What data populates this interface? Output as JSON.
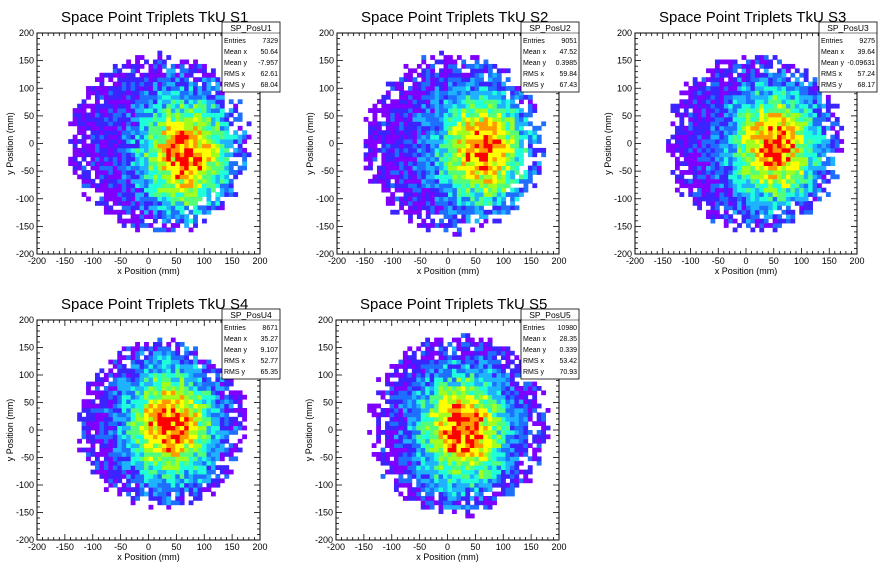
{
  "chart_data": [
    {
      "type": "heatmap",
      "title": "Space Point Triplets TkU S1",
      "xlabel": "x Position (mm)",
      "ylabel": "y Position (mm)",
      "xlim": [
        -200,
        200
      ],
      "ylim": [
        -200,
        200
      ],
      "xticks": [
        "-200",
        "-150",
        "-100",
        "-50",
        "0",
        "50",
        "100",
        "150",
        "200"
      ],
      "yticks": [
        "-200",
        "-150",
        "-100",
        "-50",
        "0",
        "50",
        "100",
        "150",
        "200"
      ],
      "disk_center": [
        20,
        0
      ],
      "disk_radius": 160,
      "hot_center": [
        70,
        -20
      ],
      "colors": [
        "#ffffff",
        "#7f00ff",
        "#3b24ff",
        "#1f6fff",
        "#1fb3ff",
        "#1fffd9",
        "#52ff7a",
        "#a0ff1f",
        "#ffff00",
        "#ff9900",
        "#ff0000"
      ],
      "stats": {
        "name": "SP_PosU1",
        "rows": [
          [
            "Entries",
            "7329"
          ],
          [
            "Mean x",
            "50.64"
          ],
          [
            "Mean y",
            "-7.957"
          ],
          [
            "RMS x",
            "62.61"
          ],
          [
            "RMS y",
            "68.04"
          ]
        ]
      }
    },
    {
      "type": "heatmap",
      "title": "Space Point Triplets TkU S2",
      "xlabel": "x Position (mm)",
      "ylabel": "y Position (mm)",
      "xlim": [
        -200,
        200
      ],
      "ylim": [
        -200,
        200
      ],
      "xticks": [
        "-200",
        "-150",
        "-100",
        "-50",
        "0",
        "50",
        "100",
        "150",
        "200"
      ],
      "yticks": [
        "-200",
        "-150",
        "-100",
        "-50",
        "0",
        "50",
        "100",
        "150",
        "200"
      ],
      "disk_center": [
        10,
        0
      ],
      "disk_radius": 160,
      "hot_center": [
        65,
        -10
      ],
      "colors": [
        "#ffffff",
        "#7f00ff",
        "#3b24ff",
        "#1f6fff",
        "#1fb3ff",
        "#1fffd9",
        "#52ff7a",
        "#a0ff1f",
        "#ffff00",
        "#ff9900",
        "#ff0000"
      ],
      "stats": {
        "name": "SP_PosU2",
        "rows": [
          [
            "Entries",
            "9051"
          ],
          [
            "Mean x",
            "47.52"
          ],
          [
            "Mean y",
            "0.3985"
          ],
          [
            "RMS x",
            "59.84"
          ],
          [
            "RMS y",
            "67.43"
          ]
        ]
      }
    },
    {
      "type": "heatmap",
      "title": "Space Point Triplets TkU S3",
      "xlabel": "x Position (mm)",
      "ylabel": "y Position (mm)",
      "xlim": [
        -200,
        200
      ],
      "ylim": [
        -200,
        200
      ],
      "xticks": [
        "-200",
        "-150",
        "-100",
        "-50",
        "0",
        "50",
        "100",
        "150",
        "200"
      ],
      "yticks": [
        "-200",
        "-150",
        "-100",
        "-50",
        "0",
        "50",
        "100",
        "150",
        "200"
      ],
      "disk_center": [
        15,
        0
      ],
      "disk_radius": 158,
      "hot_center": [
        55,
        -5
      ],
      "colors": [
        "#ffffff",
        "#7f00ff",
        "#3b24ff",
        "#1f6fff",
        "#1fb3ff",
        "#1fffd9",
        "#52ff7a",
        "#a0ff1f",
        "#ffff00",
        "#ff9900",
        "#ff0000"
      ],
      "stats": {
        "name": "SP_PosU3",
        "rows": [
          [
            "Entries",
            "9275"
          ],
          [
            "Mean x",
            "39.64"
          ],
          [
            "Mean y",
            "-0.09631"
          ],
          [
            "RMS x",
            "57.24"
          ],
          [
            "RMS y",
            "68.17"
          ]
        ]
      }
    },
    {
      "type": "heatmap",
      "title": "Space Point Triplets TkU S4",
      "xlabel": "x Position (mm)",
      "ylabel": "y Position (mm)",
      "xlim": [
        -200,
        200
      ],
      "ylim": [
        -200,
        200
      ],
      "xticks": [
        "-200",
        "-150",
        "-100",
        "-50",
        "0",
        "50",
        "100",
        "150",
        "200"
      ],
      "yticks": [
        "-200",
        "-150",
        "-100",
        "-50",
        "0",
        "50",
        "100",
        "150",
        "200"
      ],
      "disk_center": [
        25,
        10
      ],
      "disk_radius": 150,
      "hot_center": [
        40,
        10
      ],
      "colors": [
        "#ffffff",
        "#7f00ff",
        "#3b24ff",
        "#1f6fff",
        "#1fb3ff",
        "#1fffd9",
        "#52ff7a",
        "#a0ff1f",
        "#ffff00",
        "#ff9900",
        "#ff0000"
      ],
      "stats": {
        "name": "SP_PosU4",
        "rows": [
          [
            "Entries",
            "8671"
          ],
          [
            "Mean x",
            "35.27"
          ],
          [
            "Mean y",
            "9.107"
          ],
          [
            "RMS x",
            "52.77"
          ],
          [
            "RMS y",
            "65.35"
          ]
        ]
      }
    },
    {
      "type": "heatmap",
      "title": "Space Point Triplets TkU S5",
      "xlabel": "x Position (mm)",
      "ylabel": "y Position (mm)",
      "xlim": [
        -200,
        200
      ],
      "ylim": [
        -200,
        200
      ],
      "xticks": [
        "-200",
        "-150",
        "-100",
        "-50",
        "0",
        "50",
        "100",
        "150",
        "200"
      ],
      "yticks": [
        "-200",
        "-150",
        "-100",
        "-50",
        "0",
        "50",
        "100",
        "150",
        "200"
      ],
      "disk_center": [
        20,
        10
      ],
      "disk_radius": 160,
      "hot_center": [
        30,
        0
      ],
      "colors": [
        "#ffffff",
        "#7f00ff",
        "#3b24ff",
        "#1f6fff",
        "#1fb3ff",
        "#1fffd9",
        "#52ff7a",
        "#a0ff1f",
        "#ffff00",
        "#ff9900",
        "#ff0000"
      ],
      "stats": {
        "name": "SP_PosU5",
        "rows": [
          [
            "Entries",
            "10980"
          ],
          [
            "Mean x",
            "28.35"
          ],
          [
            "Mean y",
            "0.339"
          ],
          [
            "RMS x",
            "53.42"
          ],
          [
            "RMS y",
            "70.93"
          ]
        ]
      }
    }
  ]
}
